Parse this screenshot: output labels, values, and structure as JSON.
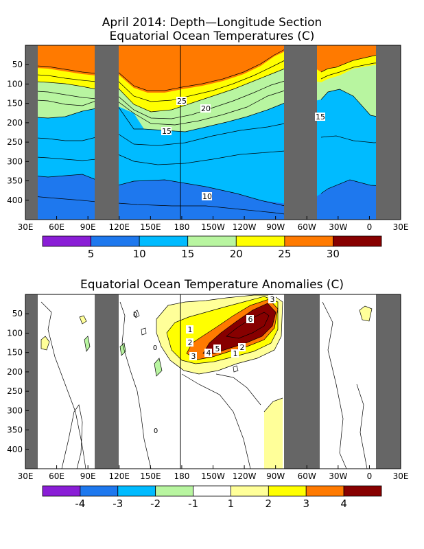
{
  "colors": {
    "land": "#666666",
    "frame": "#000000",
    "contour": "#000000",
    "temp_palette": [
      "#8a1ed6",
      "#1e78ee",
      "#00bbff",
      "#b8f5a0",
      "#ffff00",
      "#ff7a00",
      "#870000"
    ],
    "anom_palette": [
      "#8a1ed6",
      "#1e78ee",
      "#00bbff",
      "#b8f5a0",
      "#ffffff",
      "#ffff99",
      "#ffff00",
      "#ff7a00",
      "#870000"
    ]
  },
  "chart_data": [
    {
      "type": "heatmap",
      "title_line1": "April 2014: Depth—Longitude Section",
      "title_line2": "Equatorial Ocean Temperatures (C)",
      "xlabel": "",
      "ylabel": "",
      "x_ticks": [
        "30E",
        "60E",
        "90E",
        "120E",
        "150E",
        "180",
        "150W",
        "120W",
        "90W",
        "60W",
        "30W",
        "0",
        "30E"
      ],
      "y_ticks": [
        "50",
        "100",
        "150",
        "200",
        "250",
        "300",
        "350",
        "400"
      ],
      "ylim": [
        0,
        450
      ],
      "xlim": [
        "30E",
        "30E"
      ],
      "contour_labels": [
        "25",
        "20",
        "15",
        "15",
        "10"
      ],
      "colorbar": {
        "bins": 7,
        "labels": [
          "5",
          "10",
          "15",
          "20",
          "25",
          "30"
        ],
        "thresholds": [
          5,
          10,
          15,
          20,
          25,
          30
        ]
      },
      "features": {
        "mixed_layer_warm_pool": "above 25C in west Pacific down to ~150 m",
        "thermocline_20C": "~180 m in west Pacific shoaling to ~60 m near 90W",
        "deep_water": "below 10C beneath ~380 m in central Pacific"
      }
    },
    {
      "type": "heatmap",
      "title": "Equatorial Ocean Temperature Anomalies (C)",
      "xlabel": "",
      "ylabel": "",
      "x_ticks": [
        "30E",
        "60E",
        "90E",
        "120E",
        "150E",
        "180",
        "150W",
        "120W",
        "90W",
        "60W",
        "30W",
        "0",
        "30E"
      ],
      "y_ticks": [
        "50",
        "100",
        "150",
        "200",
        "250",
        "300",
        "350",
        "400"
      ],
      "ylim": [
        0,
        450
      ],
      "contour_labels": [
        "3",
        "6",
        "1",
        "2",
        "5",
        "4",
        "3",
        "2",
        "1",
        "0",
        "0",
        "0"
      ],
      "colorbar": {
        "bins": 9,
        "labels": [
          "-4",
          "-3",
          "-2",
          "-1",
          "1",
          "2",
          "3",
          "4"
        ],
        "thresholds": [
          -4,
          -3,
          -2,
          -1,
          1,
          2,
          3,
          4
        ]
      },
      "features": {
        "max_anomaly": 6,
        "max_anomaly_location": "~125W, ~80 m depth",
        "warm_kelvin_wave": "tilted core from ~160W at 150 m to ~95W at 30 m"
      }
    }
  ]
}
